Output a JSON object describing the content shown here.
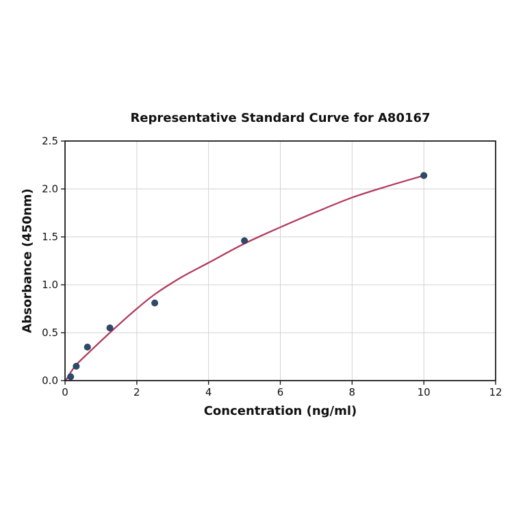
{
  "chart_data": {
    "type": "scatter",
    "title": "Representative Standard Curve for A80167",
    "xlabel": "Concentration (ng/ml)",
    "ylabel": "Absorbance (450nm)",
    "xlim": [
      0,
      12
    ],
    "ylim": [
      0,
      2.5
    ],
    "grid": true,
    "legend": "none",
    "xticks": {
      "values": [
        0,
        2,
        4,
        6,
        8,
        10,
        12
      ],
      "labels": [
        "0",
        "2",
        "4",
        "6",
        "8",
        "10",
        "12"
      ]
    },
    "yticks": {
      "values": [
        0,
        0.5,
        1.0,
        1.5,
        2.0,
        2.5
      ],
      "labels": [
        "0.0",
        "0.5",
        "1.0",
        "1.5",
        "2.0",
        "2.5"
      ]
    },
    "series": [
      {
        "name": "standard-points",
        "kind": "scatter",
        "color": "#2e4a6b",
        "edge_color": "#223a57",
        "marker": "circle",
        "marker_radius": 4.6,
        "points": [
          {
            "x": 0.156,
            "y": 0.04
          },
          {
            "x": 0.3125,
            "y": 0.15
          },
          {
            "x": 0.625,
            "y": 0.35
          },
          {
            "x": 1.25,
            "y": 0.55
          },
          {
            "x": 2.5,
            "y": 0.81
          },
          {
            "x": 5,
            "y": 1.46
          },
          {
            "x": 10,
            "y": 2.14
          }
        ]
      },
      {
        "name": "fitted-curve",
        "kind": "line",
        "color": "#b23a5c",
        "width": 2.3,
        "points": [
          {
            "x": 0.02,
            "y": 0.0
          },
          {
            "x": 0.156,
            "y": 0.085
          },
          {
            "x": 0.3125,
            "y": 0.165
          },
          {
            "x": 0.625,
            "y": 0.28
          },
          {
            "x": 1.25,
            "y": 0.5
          },
          {
            "x": 1.875,
            "y": 0.71
          },
          {
            "x": 2.5,
            "y": 0.9
          },
          {
            "x": 3.25,
            "y": 1.08
          },
          {
            "x": 4,
            "y": 1.23
          },
          {
            "x": 5,
            "y": 1.43
          },
          {
            "x": 6,
            "y": 1.6
          },
          {
            "x": 7,
            "y": 1.76
          },
          {
            "x": 8,
            "y": 1.91
          },
          {
            "x": 9,
            "y": 2.03
          },
          {
            "x": 10,
            "y": 2.14
          }
        ]
      }
    ],
    "colors": {
      "background": "#ffffff",
      "grid": "#d2d2d2",
      "axis": "#1a1a1a",
      "text": "#111111",
      "curve": "#b23a5c",
      "points": "#2e4a6b"
    }
  }
}
